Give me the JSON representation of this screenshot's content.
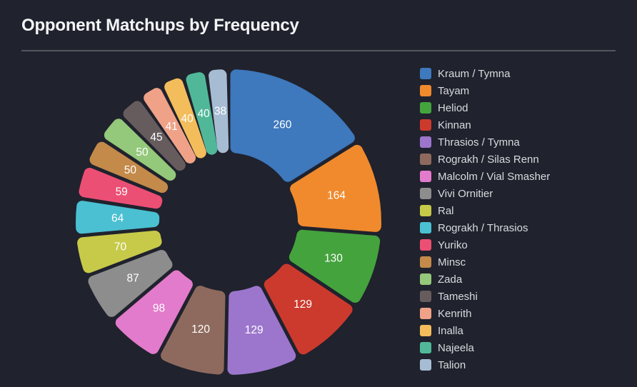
{
  "header": {
    "title": "Opponent Matchups by Frequency"
  },
  "theme": {
    "background": "#20222d",
    "title_color": "#f4f5f7",
    "divider_color": "#54555d",
    "legend_text_color": "#d9dbdf",
    "value_label_color": "#ffffff"
  },
  "chart_data": {
    "type": "pie",
    "title": "Opponent Matchups by Frequency",
    "donut": true,
    "start_angle_deg": 0,
    "direction": "clockwise",
    "legend_position": "right",
    "total": 1614,
    "categories": [
      "Kraum / Tymna",
      "Tayam",
      "Heliod",
      "Kinnan",
      "Thrasios / Tymna",
      "Rograkh / Silas Renn",
      "Malcolm / Vial Smasher",
      "Vivi Ornitier",
      "Ral",
      "Rograkh / Thrasios",
      "Yuriko",
      "Minsc",
      "Zada",
      "Tameshi",
      "Kenrith",
      "Inalla",
      "Najeela",
      "Talion"
    ],
    "values": [
      260,
      164,
      130,
      129,
      129,
      120,
      98,
      87,
      70,
      64,
      59,
      50,
      50,
      45,
      41,
      40,
      40,
      38
    ],
    "colors": [
      "#3e78bd",
      "#f08a2d",
      "#44a33d",
      "#cc3a2e",
      "#9c76cd",
      "#8e6a5e",
      "#e27bcb",
      "#8d8d8d",
      "#c6ca48",
      "#4ac0d2",
      "#ec4f74",
      "#c48a4a",
      "#94c87a",
      "#665c5e",
      "#efa287",
      "#f3bd5c",
      "#50b898",
      "#a6bcd3"
    ]
  }
}
